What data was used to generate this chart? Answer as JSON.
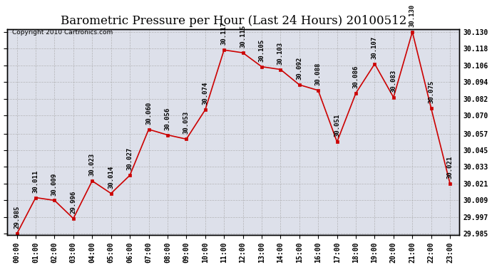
{
  "title": "Barometric Pressure per Hour (Last 24 Hours) 20100512",
  "copyright": "Copyright 2010 Cartronics.com",
  "hours": [
    "00:00",
    "01:00",
    "02:00",
    "03:00",
    "04:00",
    "05:00",
    "06:00",
    "07:00",
    "08:00",
    "09:00",
    "10:00",
    "11:00",
    "12:00",
    "13:00",
    "14:00",
    "15:00",
    "16:00",
    "17:00",
    "18:00",
    "19:00",
    "20:00",
    "21:00",
    "22:00",
    "23:00"
  ],
  "values": [
    29.985,
    30.011,
    30.009,
    29.996,
    30.023,
    30.014,
    30.027,
    30.06,
    30.056,
    30.053,
    30.074,
    30.117,
    30.115,
    30.105,
    30.103,
    30.092,
    30.088,
    30.051,
    30.086,
    30.107,
    30.083,
    30.13,
    30.075,
    30.021
  ],
  "line_color": "#cc0000",
  "marker_color": "#cc0000",
  "bg_color": "#ffffff",
  "plot_bg_color": "#dde0ea",
  "grid_color": "#aaaaaa",
  "ylim_min": 29.984,
  "ylim_max": 30.132,
  "ytick_values": [
    29.985,
    29.997,
    30.009,
    30.021,
    30.033,
    30.045,
    30.057,
    30.07,
    30.082,
    30.094,
    30.106,
    30.118,
    30.13
  ],
  "title_fontsize": 12,
  "label_fontsize": 6.5,
  "tick_fontsize": 7,
  "copyright_fontsize": 6.5
}
